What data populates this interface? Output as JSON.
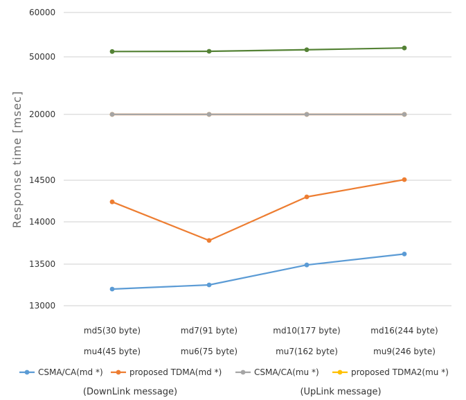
{
  "chart_data": {
    "type": "line",
    "title": "",
    "xlabel": "",
    "ylabel": "Response time [msec]",
    "grid": true,
    "y_ticks": [
      "60000",
      "50000",
      "20000",
      "14500",
      "14000",
      "13500",
      "13000"
    ],
    "categories": [
      {
        "line1": "md5(30 byte)",
        "line2": "mu4(45 byte)"
      },
      {
        "line1": "md7(91 byte)",
        "line2": "mu6(75 byte)"
      },
      {
        "line1": "md10(177 byte)",
        "line2": "mu7(162 byte)"
      },
      {
        "line1": "md16(244 byte)",
        "line2": "mu9(246 byte)"
      }
    ],
    "series": [
      {
        "name": "CSMA/CA(md *)",
        "color": "#5b9bd5",
        "values": [
          13200,
          13250,
          13490,
          13620
        ]
      },
      {
        "name": "proposed TDMA(md *)",
        "color": "#ed7d31",
        "values": [
          14240,
          13780,
          14300,
          14550
        ]
      },
      {
        "name": "CSMA/CA(mu *)",
        "color": "#a5a5a5",
        "values": [
          20000,
          20000,
          20000,
          20000
        ]
      },
      {
        "name": "proposed TDMA2(mu *)",
        "color": "#ffc000",
        "values": [
          20000,
          20000,
          20000,
          20000
        ]
      },
      {
        "name": "",
        "color": "#e41a1c",
        "values": [
          20000,
          20000,
          20000,
          20000
        ]
      },
      {
        "name": "",
        "color": "#548235",
        "values": [
          51200,
          51250,
          51600,
          52000
        ]
      }
    ],
    "legend_position": "bottom",
    "group_labels": [
      "(DownLink message)",
      "(UpLink message)"
    ]
  }
}
